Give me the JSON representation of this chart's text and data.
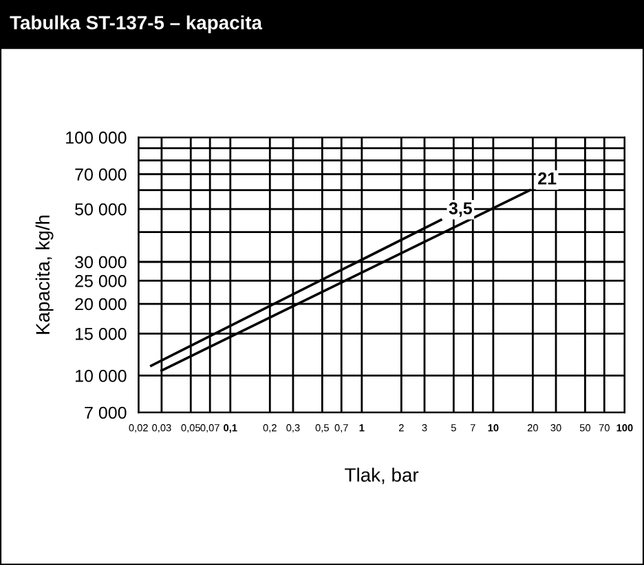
{
  "chart_data": {
    "type": "line",
    "title": "Tabulka ST-137-5 – kapacita",
    "xlabel": "Tlak, bar",
    "ylabel": "Kapacita, kg/h",
    "log": "xy",
    "grid": true,
    "legend": false,
    "marker": "none",
    "line_style": "solid",
    "xlim": [
      0.02,
      100
    ],
    "ylim": [
      7000,
      100000
    ],
    "xticks": [
      {
        "value": 0.02,
        "label": "0,02"
      },
      {
        "value": 0.03,
        "label": "0,03"
      },
      {
        "value": 0.05,
        "label": "0,05"
      },
      {
        "value": 0.07,
        "label": "0,07"
      },
      {
        "value": 0.1,
        "label": "0,1"
      },
      {
        "value": 0.2,
        "label": "0,2"
      },
      {
        "value": 0.3,
        "label": "0,3"
      },
      {
        "value": 0.5,
        "label": "0,5"
      },
      {
        "value": 0.7,
        "label": "0,7"
      },
      1,
      2,
      3,
      5,
      7,
      10,
      20,
      30,
      50,
      70,
      100
    ],
    "yticks": [
      {
        "value": 7000,
        "label": "7 000"
      },
      {
        "value": 10000,
        "label": "10 000"
      },
      {
        "value": 15000,
        "label": "15 000"
      },
      {
        "value": 20000,
        "label": "20 000"
      },
      {
        "value": 25000,
        "label": "25 000"
      },
      {
        "value": 30000,
        "label": "30 000"
      },
      {
        "value": 40000,
        "label": null
      },
      {
        "value": 50000,
        "label": "50 000"
      },
      {
        "value": 60000,
        "label": null
      },
      {
        "value": 70000,
        "label": "70 000"
      },
      {
        "value": 80000,
        "label": null
      },
      {
        "value": 90000,
        "label": null
      },
      {
        "value": 100000,
        "label": "100 000"
      }
    ],
    "series": [
      {
        "name": "3,5",
        "color": "#000000",
        "x": [
          0.025,
          4
        ],
        "values": [
          11000,
          45000
        ]
      },
      {
        "name": "21",
        "color": "#000000",
        "x": [
          0.03,
          19
        ],
        "values": [
          10500,
          60000
        ]
      }
    ]
  }
}
